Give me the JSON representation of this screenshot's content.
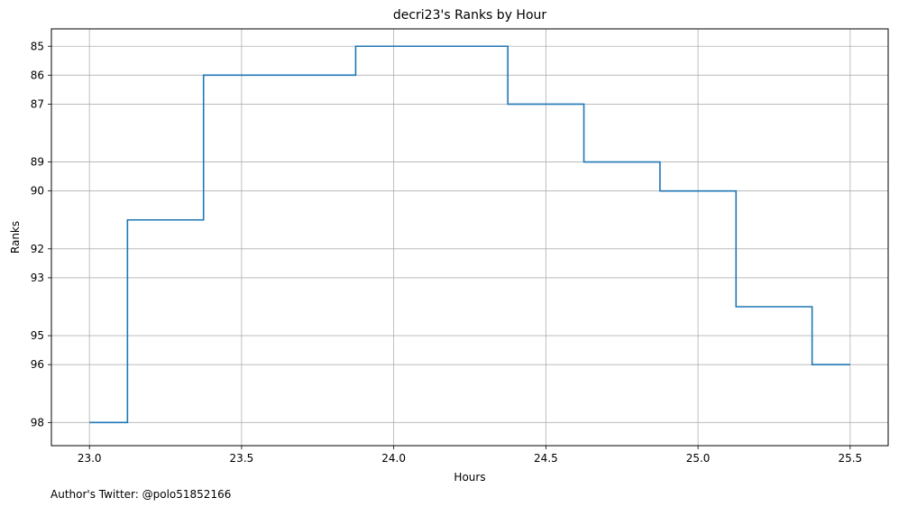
{
  "chart_data": {
    "type": "line",
    "step": "mid",
    "title": "decri23's Ranks by Hour",
    "xlabel": "Hours",
    "ylabel": "Ranks",
    "x": [
      23.0,
      23.25,
      23.5,
      23.75,
      24.0,
      24.25,
      24.5,
      24.75,
      25.0,
      25.25,
      25.5
    ],
    "series": [
      {
        "values": [
          98,
          91,
          86,
          86,
          85,
          85,
          87,
          89,
          90,
          94,
          96
        ]
      }
    ],
    "xlim": [
      22.875,
      25.625
    ],
    "ylim": [
      98.8,
      84.4
    ],
    "y_inverted": true,
    "xticks": [
      23.0,
      23.5,
      24.0,
      24.5,
      25.0,
      25.5
    ],
    "xtick_labels": [
      "23.0",
      "23.5",
      "24.0",
      "24.5",
      "25.0",
      "25.5"
    ],
    "yticks": [
      85,
      86,
      87,
      89,
      90,
      92,
      93,
      95,
      96,
      98
    ],
    "ytick_labels": [
      "85",
      "86",
      "87",
      "89",
      "90",
      "92",
      "93",
      "95",
      "96",
      "98"
    ],
    "grid": true,
    "line_color": "#1f77b4",
    "grid_color": "#b0b0b0"
  },
  "footer": {
    "text": "Author's Twitter: @polo51852166"
  }
}
